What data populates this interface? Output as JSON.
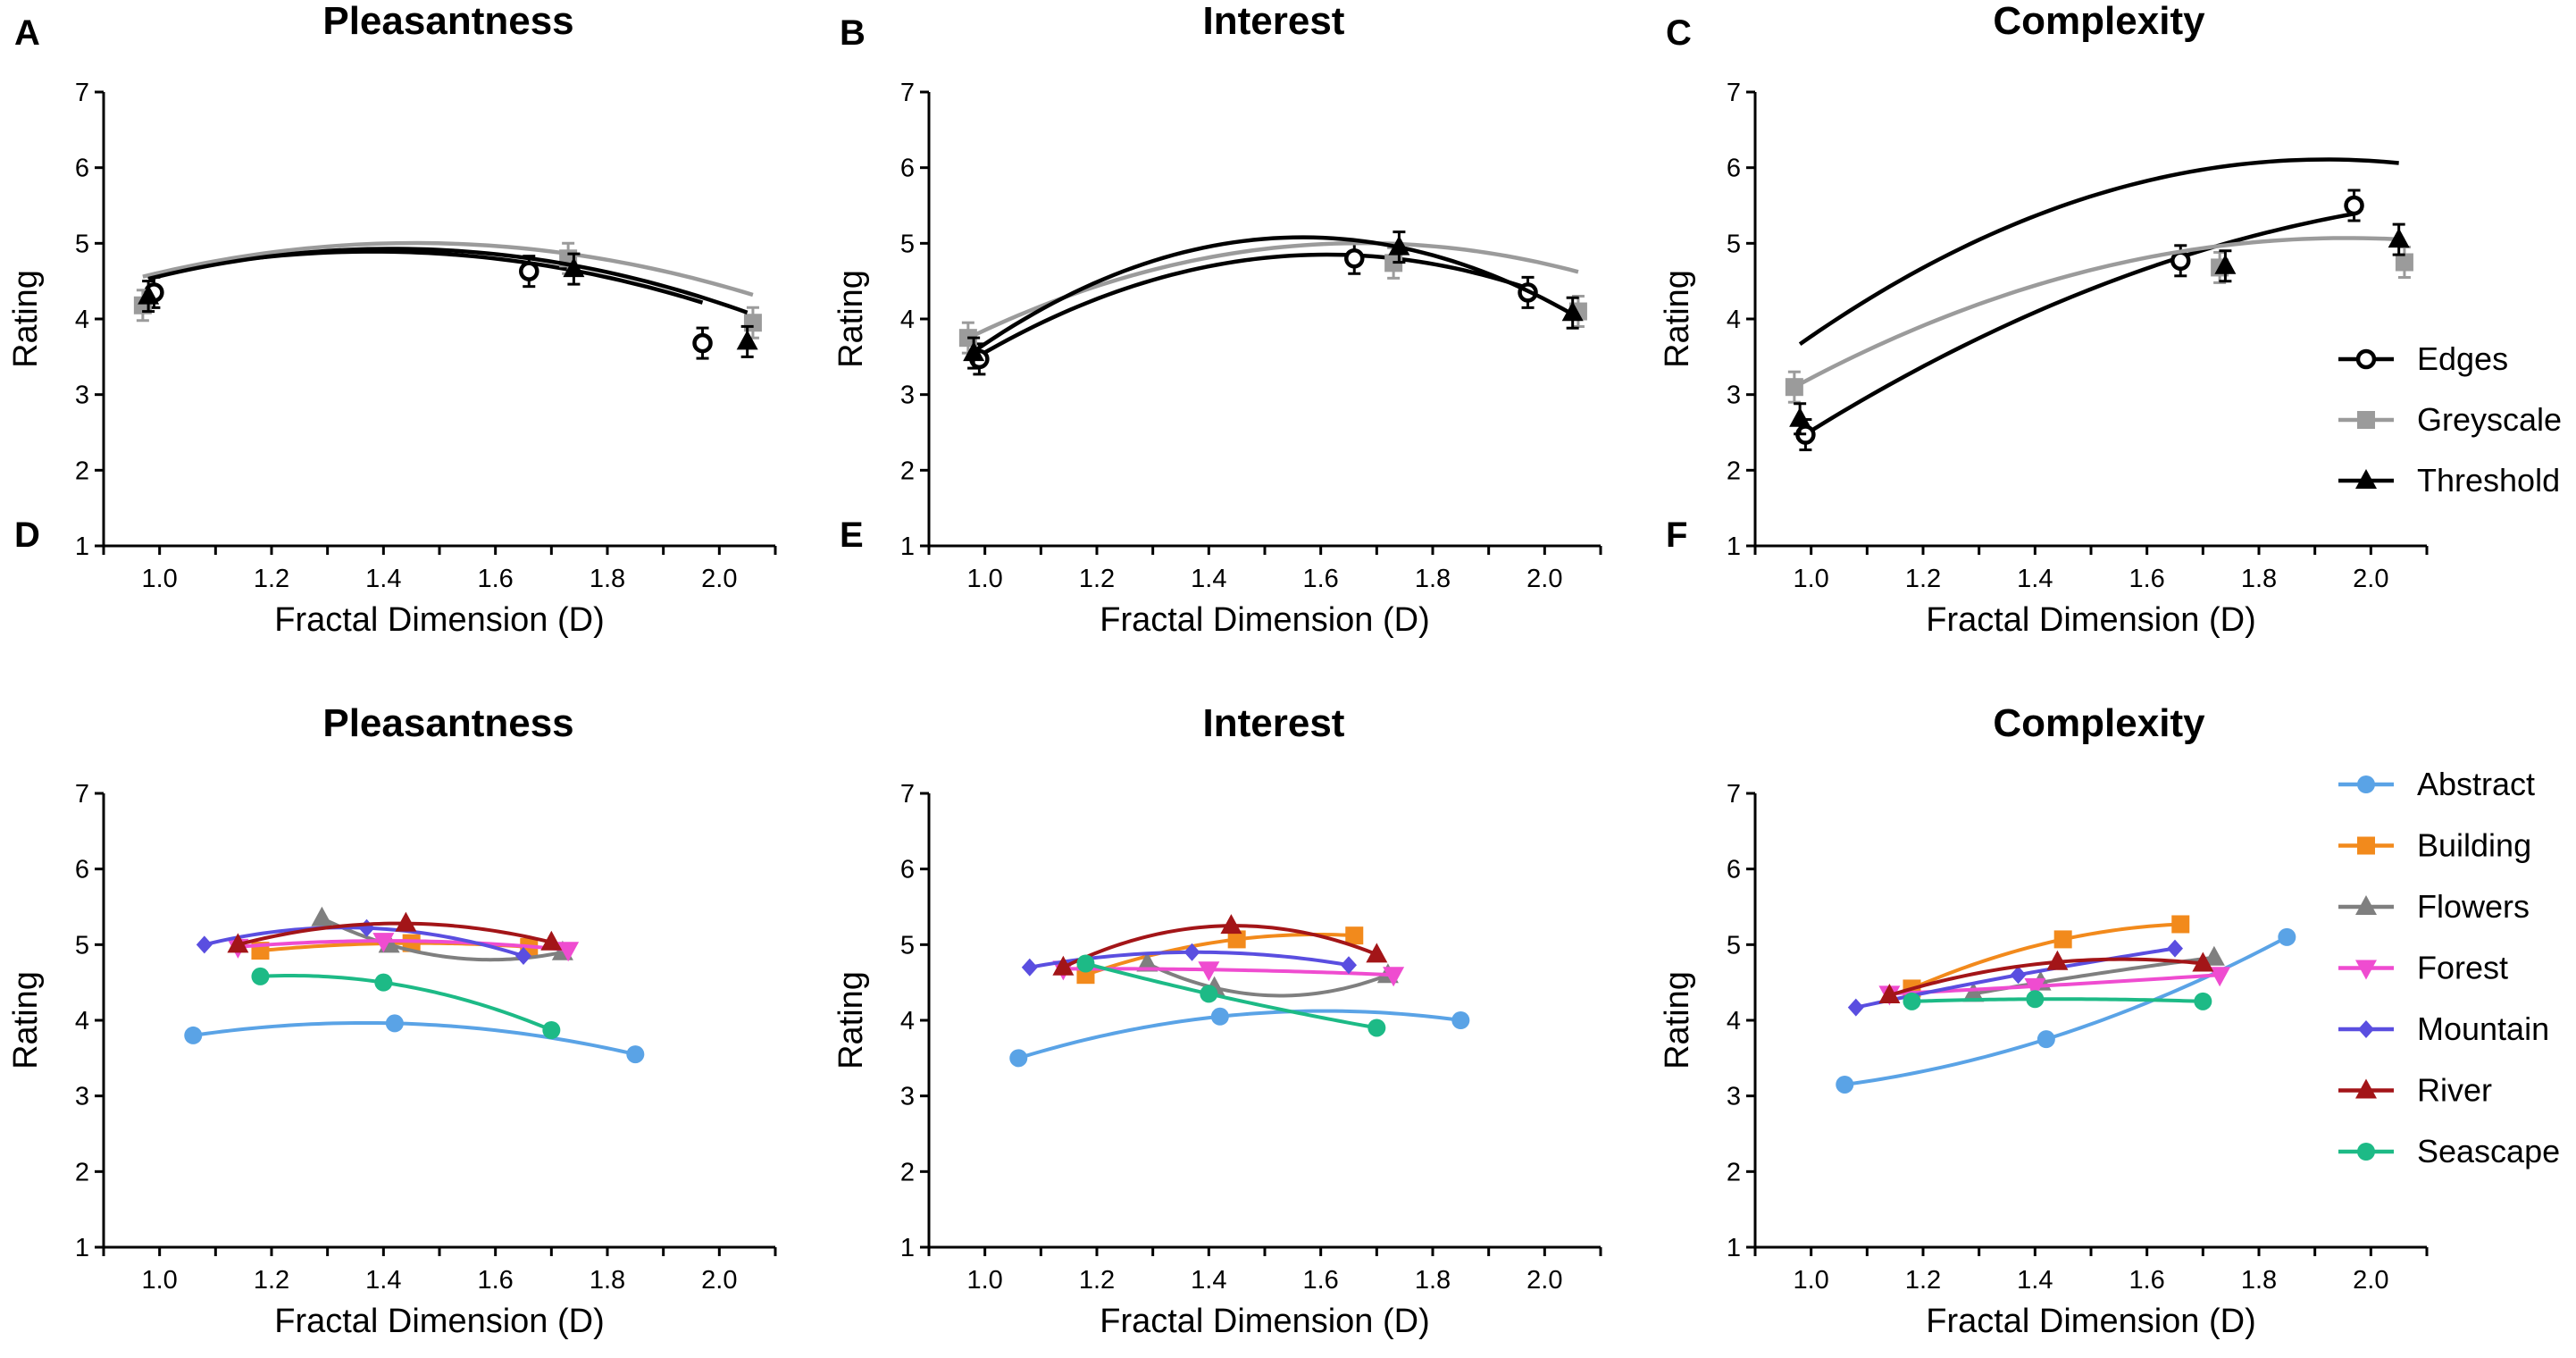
{
  "colors": {
    "Edges": "#000000",
    "Greyscale": "#9b9b9b",
    "Threshold": "#000000",
    "Abstract": "#5aa3e6",
    "Building": "#f28a1c",
    "Flowers": "#7f7f7f",
    "Forest": "#ef4cd0",
    "Mountain": "#5a4ee0",
    "River": "#a31518",
    "Seascape": "#1dba86"
  },
  "chart_data": [
    {
      "panel": "A",
      "type": "line",
      "title": "Pleasantness",
      "xlabel": "Fractal Dimension (D)",
      "ylabel": "Rating",
      "xlim": [
        0.9,
        2.1
      ],
      "ylim": [
        1,
        7
      ],
      "xticks": [
        "1.0",
        "1.2",
        "1.4",
        "1.6",
        "1.8",
        "2.0"
      ],
      "yticks": [
        "1",
        "2",
        "3",
        "4",
        "5",
        "6",
        "7"
      ],
      "series": [
        {
          "name": "Edges",
          "marker": "circle",
          "x": [
            0.99,
            1.66,
            1.97
          ],
          "y": [
            4.35,
            4.63,
            3.68
          ],
          "curve": [
            -1.946,
            5.376,
            1.178
          ]
        },
        {
          "name": "Greyscale",
          "marker": "square",
          "x": [
            0.97,
            1.73,
            2.06
          ],
          "y": [
            4.18,
            4.8,
            3.95
          ],
          "curve": [
            -1.879,
            5.473,
            1.018
          ]
        },
        {
          "name": "Threshold",
          "marker": "triangle",
          "x": [
            0.98,
            1.74,
            2.05
          ],
          "y": [
            4.3,
            4.66,
            3.7
          ],
          "curve": [
            -2.095,
            5.931,
            0.73
          ]
        }
      ]
    },
    {
      "panel": "B",
      "type": "line",
      "title": "Interest",
      "xlabel": "Fractal Dimension (D)",
      "ylabel": "Rating",
      "xlim": [
        0.9,
        2.1
      ],
      "ylim": [
        1,
        7
      ],
      "xticks": [
        "1.0",
        "1.2",
        "1.4",
        "1.6",
        "1.8",
        "2.0"
      ],
      "yticks": [
        "1",
        "2",
        "3",
        "4",
        "5",
        "6",
        "7"
      ],
      "series": [
        {
          "name": "Edges",
          "marker": "circle",
          "x": [
            0.99,
            1.66,
            1.97
          ],
          "y": [
            3.47,
            4.8,
            4.35
          ],
          "curve": [
            -3.459,
            11.148,
            -4.132
          ]
        },
        {
          "name": "Greyscale",
          "marker": "square",
          "x": [
            0.97,
            1.73,
            2.06
          ],
          "y": [
            3.75,
            4.74,
            4.1
          ],
          "curve": [
            -2.538,
            8.493,
            -2.103
          ]
        },
        {
          "name": "Threshold",
          "marker": "triangle",
          "x": [
            0.98,
            1.74,
            2.05
          ],
          "y": [
            3.55,
            4.95,
            4.08
          ],
          "curve": [
            -4.374,
            13.713,
            -5.669
          ]
        }
      ]
    },
    {
      "panel": "C",
      "type": "line",
      "title": "Complexity",
      "xlabel": "Fractal Dimension (D)",
      "ylabel": "Rating",
      "xlim": [
        0.9,
        2.1
      ],
      "ylim": [
        1,
        7
      ],
      "xticks": [
        "1.0",
        "1.2",
        "1.4",
        "1.6",
        "1.8",
        "2.0"
      ],
      "yticks": [
        "1",
        "2",
        "3",
        "4",
        "5",
        "6",
        "7"
      ],
      "series": [
        {
          "name": "Edges",
          "marker": "circle",
          "x": [
            0.99,
            1.66,
            1.97
          ],
          "y": [
            2.47,
            4.77,
            5.5
          ],
          "curve": [
            -1.677,
            7.938,
            -3.739
          ]
        },
        {
          "name": "Greyscale",
          "marker": "square",
          "x": [
            0.97,
            1.73,
            2.06
          ],
          "y": [
            3.1,
            4.68,
            4.75
          ],
          "curve": [
            -2.019,
            7.905,
            -2.668
          ]
        },
        {
          "name": "Threshold",
          "marker": "triangle",
          "x": [
            0.98,
            1.74,
            2.05
          ],
          "y": [
            2.68,
            4.7,
            5.05
          ],
          "curve": [
            -2.765,
            10.615,
            -4.08
          ]
        }
      ]
    },
    {
      "panel": "D",
      "type": "line",
      "title": "Pleasantness",
      "xlabel": "Fractal Dimension (D)",
      "ylabel": "Rating",
      "xlim": [
        0.9,
        2.1
      ],
      "ylim": [
        1,
        7
      ],
      "xticks": [
        "1.0",
        "1.2",
        "1.4",
        "1.6",
        "1.8",
        "2.0"
      ],
      "yticks": [
        "1",
        "2",
        "3",
        "4",
        "5",
        "6",
        "7"
      ],
      "series": [
        {
          "name": "Abstract",
          "marker": "circle",
          "x": [
            1.06,
            1.42,
            1.85
          ],
          "y": [
            3.8,
            3.96,
            3.55
          ]
        },
        {
          "name": "Building",
          "marker": "square",
          "x": [
            1.18,
            1.45,
            1.66
          ],
          "y": [
            4.92,
            5.02,
            4.97
          ]
        },
        {
          "name": "Flowers",
          "marker": "triangle",
          "x": [
            1.29,
            1.41,
            1.72
          ],
          "y": [
            5.35,
            5.0,
            4.9
          ]
        },
        {
          "name": "Forest",
          "marker": "triangle-down",
          "x": [
            1.14,
            1.4,
            1.73
          ],
          "y": [
            4.97,
            5.05,
            4.93
          ]
        },
        {
          "name": "Mountain",
          "marker": "diamond",
          "x": [
            1.08,
            1.37,
            1.65
          ],
          "y": [
            5.0,
            5.22,
            4.85
          ]
        },
        {
          "name": "River",
          "marker": "triangle",
          "x": [
            1.14,
            1.44,
            1.7
          ],
          "y": [
            5.0,
            5.28,
            5.03
          ]
        },
        {
          "name": "Seascape",
          "marker": "circle",
          "x": [
            1.18,
            1.4,
            1.7
          ],
          "y": [
            4.58,
            4.5,
            3.87
          ]
        }
      ]
    },
    {
      "panel": "E",
      "type": "line",
      "title": "Interest",
      "xlabel": "Fractal Dimension (D)",
      "ylabel": "Rating",
      "xlim": [
        0.9,
        2.1
      ],
      "ylim": [
        1,
        7
      ],
      "xticks": [
        "1.0",
        "1.2",
        "1.4",
        "1.6",
        "1.8",
        "2.0"
      ],
      "yticks": [
        "1",
        "2",
        "3",
        "4",
        "5",
        "6",
        "7"
      ],
      "series": [
        {
          "name": "Abstract",
          "marker": "circle",
          "x": [
            1.06,
            1.42,
            1.85
          ],
          "y": [
            3.5,
            4.05,
            4.0
          ]
        },
        {
          "name": "Building",
          "marker": "square",
          "x": [
            1.18,
            1.45,
            1.66
          ],
          "y": [
            4.6,
            5.07,
            5.12
          ]
        },
        {
          "name": "Flowers",
          "marker": "triangle",
          "x": [
            1.29,
            1.41,
            1.72
          ],
          "y": [
            4.75,
            4.43,
            4.6
          ]
        },
        {
          "name": "Forest",
          "marker": "triangle-down",
          "x": [
            1.14,
            1.4,
            1.73
          ],
          "y": [
            4.68,
            4.67,
            4.6
          ]
        },
        {
          "name": "Mountain",
          "marker": "diamond",
          "x": [
            1.08,
            1.37,
            1.65
          ],
          "y": [
            4.7,
            4.9,
            4.73
          ]
        },
        {
          "name": "River",
          "marker": "triangle",
          "x": [
            1.14,
            1.44,
            1.7
          ],
          "y": [
            4.7,
            5.25,
            4.87
          ]
        },
        {
          "name": "Seascape",
          "marker": "circle",
          "x": [
            1.18,
            1.4,
            1.7
          ],
          "y": [
            4.75,
            4.35,
            3.9
          ]
        }
      ]
    },
    {
      "panel": "F",
      "type": "line",
      "title": "Complexity",
      "xlabel": "Fractal Dimension (D)",
      "ylabel": "Rating",
      "xlim": [
        0.9,
        2.1
      ],
      "ylim": [
        1,
        7
      ],
      "xticks": [
        "1.0",
        "1.2",
        "1.4",
        "1.6",
        "1.8",
        "2.0"
      ],
      "yticks": [
        "1",
        "2",
        "3",
        "4",
        "5",
        "6",
        "7"
      ],
      "series": [
        {
          "name": "Abstract",
          "marker": "circle",
          "x": [
            1.06,
            1.42,
            1.85
          ],
          "y": [
            3.15,
            3.75,
            5.1
          ]
        },
        {
          "name": "Building",
          "marker": "square",
          "x": [
            1.18,
            1.45,
            1.66
          ],
          "y": [
            4.42,
            5.07,
            5.27
          ]
        },
        {
          "name": "Flowers",
          "marker": "triangle",
          "x": [
            1.29,
            1.41,
            1.72
          ],
          "y": [
            4.35,
            4.5,
            4.83
          ]
        },
        {
          "name": "Forest",
          "marker": "triangle-down",
          "x": [
            1.14,
            1.4,
            1.73
          ],
          "y": [
            4.35,
            4.45,
            4.6
          ]
        },
        {
          "name": "Mountain",
          "marker": "diamond",
          "x": [
            1.08,
            1.37,
            1.65
          ],
          "y": [
            4.17,
            4.6,
            4.95
          ]
        },
        {
          "name": "River",
          "marker": "triangle",
          "x": [
            1.14,
            1.44,
            1.7
          ],
          "y": [
            4.33,
            4.77,
            4.75
          ]
        },
        {
          "name": "Seascape",
          "marker": "circle",
          "x": [
            1.18,
            1.4,
            1.7
          ],
          "y": [
            4.25,
            4.28,
            4.25
          ]
        }
      ]
    }
  ],
  "legend_top": {
    "items": [
      "Edges",
      "Greyscale",
      "Threshold"
    ],
    "placement": "right of panel C"
  },
  "legend_bottom": {
    "items": [
      "Abstract",
      "Building",
      "Flowers",
      "Forest",
      "Mountain",
      "River",
      "Seascape"
    ],
    "placement": "right of panel F"
  }
}
